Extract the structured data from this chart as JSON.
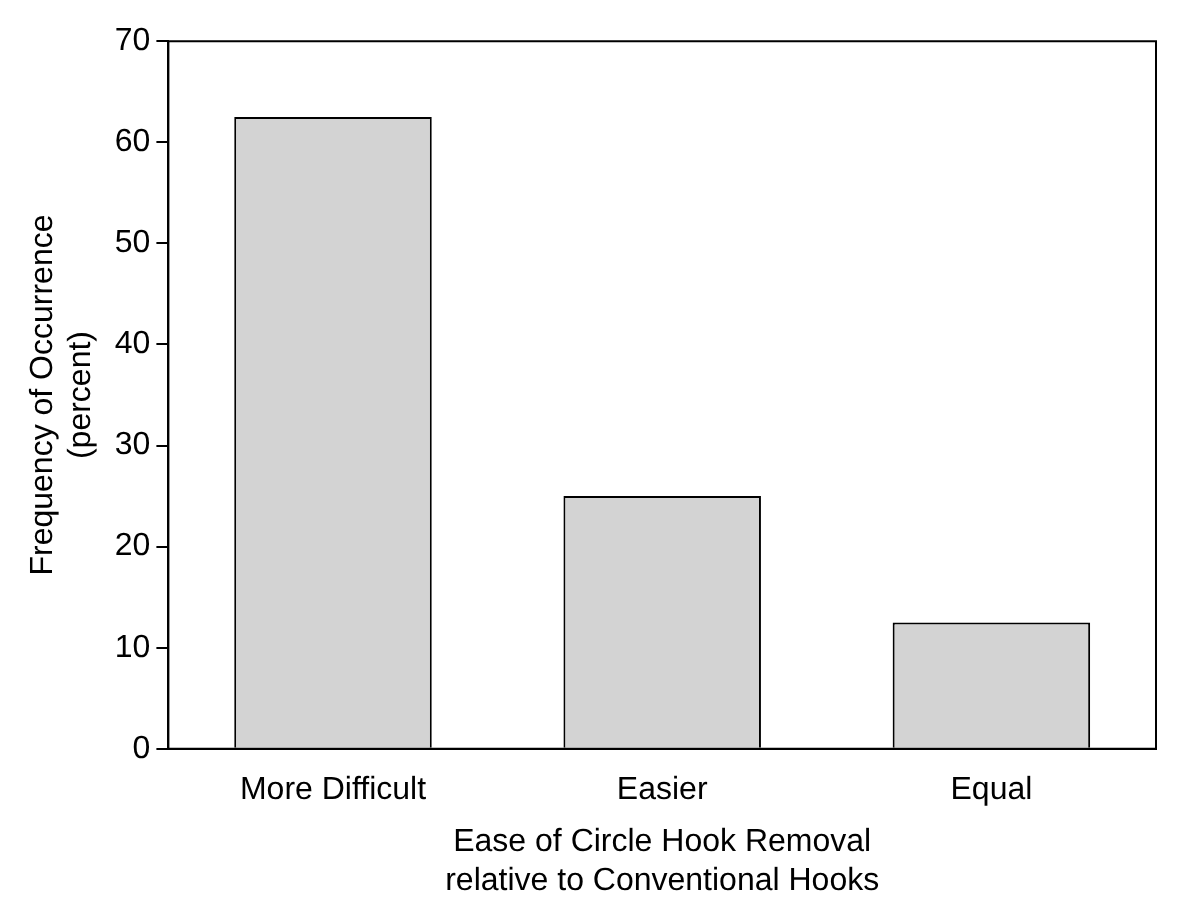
{
  "chart_data": {
    "type": "bar",
    "xlabel": "Ease of Circle Hook Removal\nrelative to Conventional Hooks",
    "ylabel": "Frequency of Occurrence\n(percent)",
    "categories": [
      "More Difficult",
      "Easier",
      "Equal"
    ],
    "values": [
      62.5,
      25,
      12.5
    ],
    "color": "#d3d3d3",
    "ylim": [
      0,
      70
    ],
    "yticks": [
      0,
      10,
      20,
      30,
      40,
      50,
      60,
      70
    ],
    "grid": false,
    "legend": false
  }
}
